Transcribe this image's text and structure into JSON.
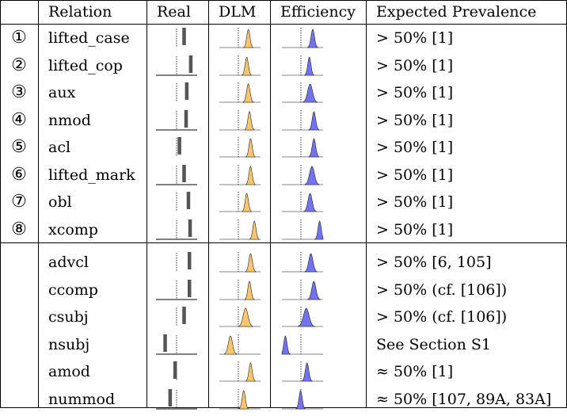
{
  "header": {
    "relation": "Relation",
    "real": "Real",
    "dlm": "DLM",
    "efficiency": "Efficiency",
    "prevalence": "Expected Prevalence"
  },
  "colors": {
    "dlm": "#f9c56f",
    "efficiency": "#7272f2",
    "real": "#555555"
  },
  "rows": [
    {
      "num": "①",
      "relation": "lifted_case",
      "prevalence": "> 50% [1]",
      "real": {
        "mean": 0.72,
        "baseline": false
      },
      "dlm": {
        "mean": 0.72,
        "width": 0.09
      },
      "eff": {
        "mean": 0.77,
        "width": 0.1
      }
    },
    {
      "num": "②",
      "relation": "lifted_cop",
      "prevalence": "> 50% [1]",
      "real": {
        "mean": 0.92,
        "baseline": true
      },
      "dlm": {
        "mean": 0.68,
        "width": 0.08
      },
      "eff": {
        "mean": 0.68,
        "width": 0.08
      }
    },
    {
      "num": "③",
      "relation": "aux",
      "prevalence": "> 50% [1]",
      "real": {
        "mean": 0.8,
        "baseline": false
      },
      "dlm": {
        "mean": 0.72,
        "width": 0.1
      },
      "eff": {
        "mean": 0.7,
        "width": 0.14
      }
    },
    {
      "num": "④",
      "relation": "nmod",
      "prevalence": "> 50% [1]",
      "real": {
        "mean": 0.78,
        "baseline": true
      },
      "dlm": {
        "mean": 0.75,
        "width": 0.08
      },
      "eff": {
        "mean": 0.8,
        "width": 0.1
      }
    },
    {
      "num": "⑤",
      "relation": "acl",
      "prevalence": "> 50% [1]",
      "real": {
        "mean": 0.58,
        "baseline": false
      },
      "dlm": {
        "mean": 0.78,
        "width": 0.08
      },
      "eff": {
        "mean": 0.8,
        "width": 0.1
      }
    },
    {
      "num": "⑥",
      "relation": "lifted_mark",
      "prevalence": "> 50% [1]",
      "real": {
        "mean": 0.72,
        "baseline": true
      },
      "dlm": {
        "mean": 0.78,
        "width": 0.08
      },
      "eff": {
        "mean": 0.75,
        "width": 0.14
      }
    },
    {
      "num": "⑦",
      "relation": "obl",
      "prevalence": "> 50% [1]",
      "real": {
        "mean": 0.85,
        "baseline": false
      },
      "dlm": {
        "mean": 0.68,
        "width": 0.09
      },
      "eff": {
        "mean": 0.7,
        "width": 0.12
      }
    },
    {
      "num": "⑧",
      "relation": "xcomp",
      "prevalence": "> 50% [1]",
      "real": {
        "mean": 0.9,
        "baseline": true
      },
      "dlm": {
        "mean": 0.88,
        "width": 0.07
      },
      "eff": {
        "mean": 0.95,
        "width": 0.04
      }
    },
    {
      "num": "",
      "relation": "advcl",
      "prevalence": "> 50% [6, 105]",
      "real": {
        "mean": 0.88,
        "baseline": false
      },
      "dlm": {
        "mean": 0.78,
        "width": 0.1
      },
      "eff": {
        "mean": 0.72,
        "width": 0.12
      }
    },
    {
      "num": "",
      "relation": "ccomp",
      "prevalence": "> 50% (cf. [106])",
      "real": {
        "mean": 0.88,
        "baseline": true
      },
      "dlm": {
        "mean": 0.75,
        "width": 0.09
      },
      "eff": {
        "mean": 0.8,
        "width": 0.12
      }
    },
    {
      "num": "",
      "relation": "csubj",
      "prevalence": "> 50% (cf. [106])",
      "real": {
        "mean": 0.72,
        "baseline": false
      },
      "dlm": {
        "mean": 0.65,
        "width": 0.14
      },
      "eff": {
        "mean": 0.6,
        "width": 0.16
      }
    },
    {
      "num": "",
      "relation": "nsubj",
      "prevalence": "See Section S1",
      "real": {
        "mean": 0.15,
        "baseline": true
      },
      "dlm": {
        "mean": 0.25,
        "width": 0.12
      },
      "eff": {
        "mean": 0.05,
        "width": 0.08
      }
    },
    {
      "num": "",
      "relation": "amod",
      "prevalence": "≈ 50% [1]",
      "real": {
        "mean": 0.45,
        "baseline": false
      },
      "dlm": {
        "mean": 0.78,
        "width": 0.08
      },
      "eff": {
        "mean": 0.62,
        "width": 0.1
      }
    },
    {
      "num": "",
      "relation": "nummod",
      "prevalence": "≈ 50% [107, 89A, 83A]",
      "real": {
        "mean": 0.3,
        "baseline": true
      },
      "dlm": {
        "mean": 0.6,
        "width": 0.08
      },
      "eff": {
        "mean": 0.45,
        "width": 0.06
      }
    }
  ]
}
